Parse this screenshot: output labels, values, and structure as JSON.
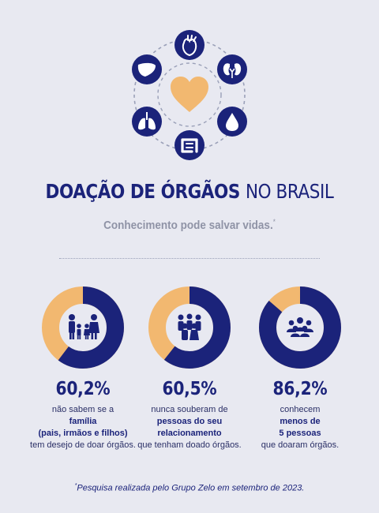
{
  "header": {
    "title_bold": "DOAÇÃO DE ÓRGÃOS",
    "title_light": "NO BRASIL",
    "subtitle": "Conhecimento pode salvar vidas.",
    "subtitle_mark": "*"
  },
  "colors": {
    "primary": "#1b237a",
    "accent": "#f2b870",
    "background": "#e8e9f1",
    "muted": "#8f93a6"
  },
  "hero": {
    "center_icon": "heart-icon",
    "organ_icons": [
      "heart-anatomical-icon",
      "kidneys-icon",
      "blood-drop-icon",
      "intestine-icon",
      "lungs-icon",
      "liver-icon"
    ]
  },
  "stats": [
    {
      "value": "60,2%",
      "percent": 60.2,
      "icon": "family-icon",
      "lines": [
        "não sabem se a",
        "família",
        "(pais, irmãos e filhos)",
        "tem desejo de doar órgãos."
      ]
    },
    {
      "value": "60,5%",
      "percent": 60.5,
      "icon": "group-icon",
      "lines": [
        "nunca souberam de",
        "pessoas do seu",
        "relacionamento",
        "que tenham doado órgãos."
      ]
    },
    {
      "value": "86,2%",
      "percent": 86.2,
      "icon": "crowd-icon",
      "lines": [
        "conhecem",
        "menos de",
        "5 pessoas",
        "que doaram órgãos."
      ]
    }
  ],
  "footnote": {
    "mark": "*",
    "text": "Pesquisa realizada pelo Grupo Zelo em setembro de 2023."
  }
}
